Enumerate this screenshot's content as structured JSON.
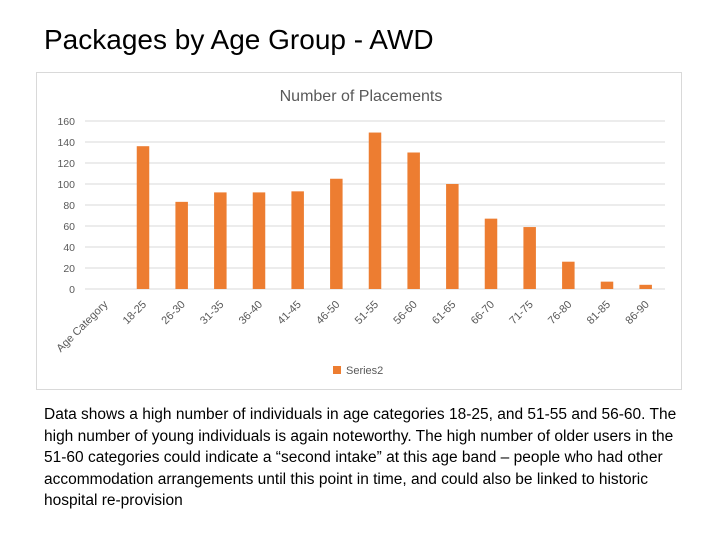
{
  "slide": {
    "title": "Packages by Age Group - AWD",
    "caption": "Data shows a high number of individuals in age categories 18-25, and 51-55 and 56-60. The high number of young individuals is again noteworthy. The high number of older users in the 51-60 categories could indicate a “second intake” at this age band – people who had other accommodation arrangements until this point in time, and could also be linked to historic hospital re-provision"
  },
  "chart_data": {
    "type": "bar",
    "title": "Number of Placements",
    "categories": [
      "Age Category",
      "18-25",
      "26-30",
      "31-35",
      "36-40",
      "41-45",
      "46-50",
      "51-55",
      "56-60",
      "61-65",
      "66-70",
      "71-75",
      "76-80",
      "81-85",
      "86-90"
    ],
    "series": [
      {
        "name": "Series2",
        "values": [
          null,
          136,
          83,
          92,
          92,
          93,
          105,
          149,
          130,
          100,
          67,
          59,
          26,
          7,
          4
        ]
      }
    ],
    "ylim": [
      0,
      160
    ],
    "yticks": [
      0,
      20,
      40,
      60,
      80,
      100,
      120,
      140,
      160
    ],
    "grid": true,
    "legend": "bottom",
    "colors": {
      "series": "#ed7d31",
      "grid": "#d9d9d9",
      "text": "#595959"
    }
  }
}
